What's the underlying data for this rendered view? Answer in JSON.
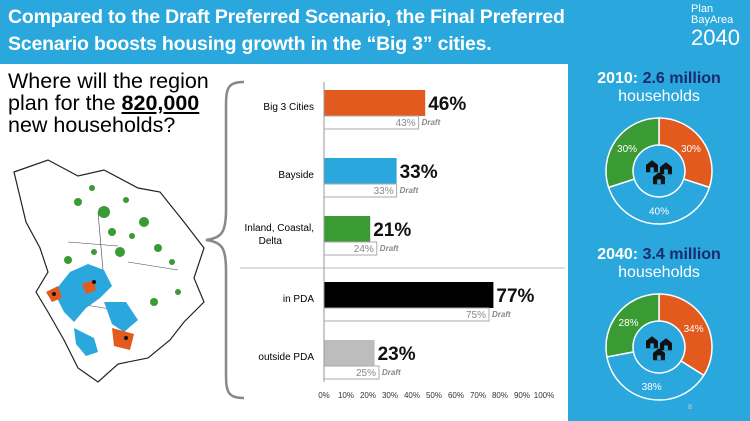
{
  "header": {
    "title_line1": "Compared to the Draft Preferred Scenario, the Final Preferred",
    "title_line2": "Scenario boosts housing growth in the “Big 3” cities.",
    "logo_line1": "Plan",
    "logo_line2": "BayArea",
    "logo_line3": "2040"
  },
  "question": {
    "line1": "Where will the region",
    "line2": "plan for the ",
    "households": "820,000",
    "line3": "new households?"
  },
  "colors": {
    "orange": "#e35a1f",
    "blue": "#2aa7dd",
    "green": "#3a9a34",
    "black": "#000000",
    "gray": "#bdbdbd",
    "navy": "#1a2a6c"
  },
  "chart_data": [
    {
      "type": "bar",
      "orientation": "horizontal",
      "categories": [
        "Big 3 Cities",
        "Bayside",
        "Inland, Coastal, Delta",
        "in PDA",
        "outside PDA"
      ],
      "series": [
        {
          "name": "",
          "values": [
            46,
            33,
            21,
            77,
            23
          ]
        },
        {
          "name": "Draft",
          "values": [
            43,
            33,
            24,
            75,
            25
          ]
        }
      ],
      "value_labels": [
        "46%",
        "33%",
        "21%",
        "77%",
        "23%"
      ],
      "draft_labels": [
        "43%",
        "33%",
        "24%",
        "75%",
        "25%"
      ],
      "draft_tag": "Draft",
      "bar_colors": [
        "#e35a1f",
        "#2aa7dd",
        "#3a9a34",
        "#000000",
        "#bdbdbd"
      ],
      "xlim": [
        0,
        100
      ],
      "x_ticks": [
        "0%",
        "10%",
        "20%",
        "30%",
        "40%",
        "50%",
        "60%",
        "70%",
        "80%",
        "90%",
        "100%"
      ],
      "xlabel": "",
      "ylabel": "",
      "grid": false
    },
    {
      "type": "pie",
      "title_year": "2010:",
      "title_value": "2.6 million",
      "title_unit": "households",
      "slices": [
        {
          "value": 30,
          "label": "30%",
          "color": "#e35a1f"
        },
        {
          "value": 40,
          "label": "40%",
          "color": "#2aa7dd"
        },
        {
          "value": 30,
          "label": "30%",
          "color": "#3a9a34"
        }
      ]
    },
    {
      "type": "pie",
      "title_year": "2040:",
      "title_value": "3.4 million",
      "title_unit": "households",
      "slices": [
        {
          "value": 34,
          "label": "34%",
          "color": "#e35a1f"
        },
        {
          "value": 38,
          "label": "38%",
          "color": "#2aa7dd"
        },
        {
          "value": 28,
          "label": "28%",
          "color": "#3a9a34"
        }
      ]
    }
  ],
  "page_number": "8"
}
